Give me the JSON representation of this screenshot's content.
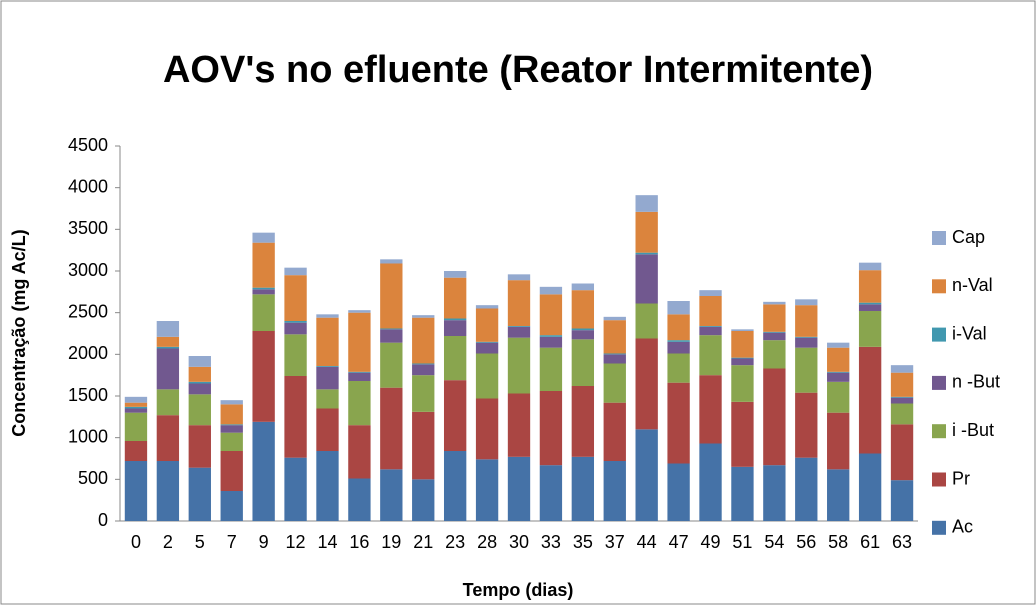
{
  "chart_data": {
    "type": "stacked_bar",
    "title": "AOV's no efluente (Reator Intermitente)",
    "xlabel": "Tempo (dias)",
    "ylabel": "Concentração (mg Ac/L)",
    "categories": [
      "0",
      "2",
      "5",
      "7",
      "9",
      "12",
      "14",
      "16",
      "19",
      "21",
      "23",
      "28",
      "30",
      "33",
      "35",
      "37",
      "44",
      "47",
      "49",
      "51",
      "54",
      "56",
      "58",
      "61",
      "63"
    ],
    "series": [
      {
        "name": "Ac",
        "color": "#4572a7",
        "values": [
          720,
          720,
          640,
          360,
          1190,
          760,
          840,
          510,
          620,
          500,
          840,
          740,
          770,
          670,
          770,
          720,
          1100,
          690,
          930,
          650,
          670,
          760,
          620,
          810,
          490
        ]
      },
      {
        "name": "Pr",
        "color": "#aa4643",
        "values": [
          240,
          550,
          510,
          480,
          1090,
          980,
          510,
          640,
          980,
          810,
          850,
          730,
          760,
          890,
          850,
          700,
          1090,
          970,
          820,
          780,
          1160,
          780,
          680,
          1280,
          670
        ]
      },
      {
        "name": "i -But",
        "color": "#89a54e",
        "values": [
          340,
          310,
          370,
          220,
          440,
          500,
          230,
          530,
          540,
          440,
          530,
          540,
          670,
          520,
          560,
          470,
          420,
          350,
          480,
          440,
          340,
          540,
          370,
          430,
          250
        ]
      },
      {
        "name": "n -But",
        "color": "#71588f",
        "values": [
          50,
          490,
          130,
          90,
          60,
          140,
          270,
          100,
          160,
          130,
          190,
          130,
          130,
          130,
          110,
          110,
          590,
          140,
          100,
          80,
          90,
          120,
          110,
          80,
          70
        ]
      },
      {
        "name": "i-Val",
        "color": "#4198af",
        "values": [
          20,
          20,
          20,
          10,
          20,
          20,
          10,
          10,
          10,
          10,
          20,
          10,
          10,
          20,
          20,
          10,
          20,
          20,
          10,
          10,
          10,
          10,
          10,
          20,
          10
        ]
      },
      {
        "name": "n-Val",
        "color": "#db843d",
        "values": [
          50,
          120,
          180,
          240,
          540,
          550,
          580,
          710,
          780,
          550,
          490,
          400,
          550,
          490,
          460,
          400,
          490,
          310,
          360,
          320,
          330,
          380,
          290,
          390,
          290
        ]
      },
      {
        "name": "Cap",
        "color": "#93a9cf",
        "values": [
          70,
          190,
          130,
          50,
          120,
          90,
          40,
          30,
          50,
          30,
          80,
          40,
          70,
          90,
          80,
          40,
          200,
          160,
          70,
          20,
          30,
          70,
          60,
          90,
          90
        ]
      }
    ],
    "ylim": [
      0,
      4500
    ],
    "yticks": [
      0,
      500,
      1000,
      1500,
      2000,
      2500,
      3000,
      3500,
      4000,
      4500
    ],
    "legend": "right"
  }
}
